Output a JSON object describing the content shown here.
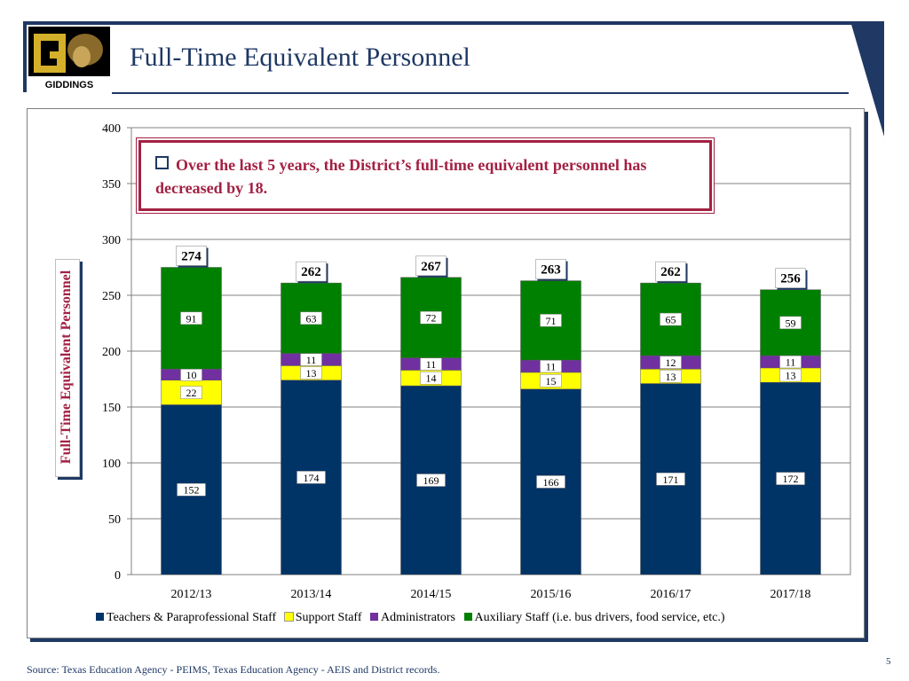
{
  "header": {
    "title": "Full-Time Equivalent Personnel",
    "logo_text": "GIDDINGS"
  },
  "callout": {
    "text": "Over the last 5 years, the District’s full-time equivalent personnel has decreased by 18."
  },
  "footer": {
    "source": "Source: Texas Education Agency - PEIMS, Texas Education Agency - AEIS and District records.",
    "page_number": "5"
  },
  "colors": {
    "navy": "#003366",
    "yellow": "#ffff00",
    "purple": "#7030a0",
    "green": "#008000",
    "accent": "#a32143"
  },
  "chart_data": {
    "type": "bar",
    "stacked": true,
    "title": "",
    "xlabel": "",
    "ylabel": "Full-Time Equivalent Personnel",
    "ylim": [
      0,
      400
    ],
    "yticks": [
      0,
      50,
      100,
      150,
      200,
      250,
      300,
      350,
      400
    ],
    "categories": [
      "2012/13",
      "2013/14",
      "2014/15",
      "2015/16",
      "2016/17",
      "2017/18"
    ],
    "series": [
      {
        "name": "Teachers & Paraprofessional Staff",
        "color": "#003366",
        "values": [
          152,
          174,
          169,
          166,
          171,
          172
        ]
      },
      {
        "name": "Support Staff",
        "color": "#ffff00",
        "values": [
          22,
          13,
          14,
          15,
          13,
          13
        ]
      },
      {
        "name": "Administrators",
        "color": "#7030a0",
        "values": [
          10,
          11,
          11,
          11,
          12,
          11
        ]
      },
      {
        "name": "Auxiliary Staff (i.e. bus drivers, food service, etc.)",
        "color": "#008000",
        "values": [
          91,
          63,
          72,
          71,
          65,
          59
        ]
      }
    ],
    "totals": [
      274,
      262,
      267,
      263,
      262,
      256
    ],
    "legend_position": "bottom"
  }
}
